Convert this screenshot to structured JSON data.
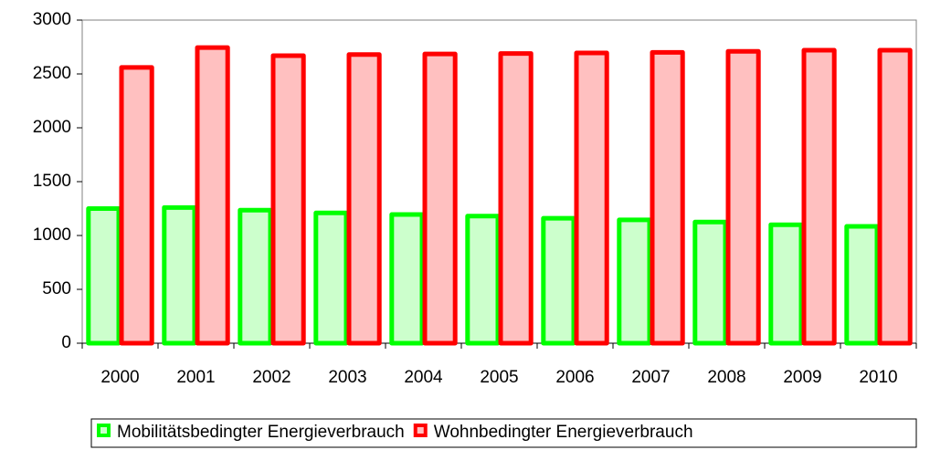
{
  "chart_data": {
    "type": "bar",
    "categories": [
      "2000",
      "2001",
      "2002",
      "2003",
      "2004",
      "2005",
      "2006",
      "2007",
      "2008",
      "2009",
      "2010"
    ],
    "series": [
      {
        "name": "Mobilitätsbedingter Energieverbrauch",
        "color": "#00ff00",
        "fill": "#ccffcc",
        "values": [
          1250,
          1260,
          1235,
          1210,
          1195,
          1180,
          1160,
          1145,
          1125,
          1100,
          1085
        ]
      },
      {
        "name": "Wohnbedingter Energieverbrauch",
        "color": "#ff0000",
        "fill": "#ffc0c0",
        "values": [
          2560,
          2745,
          2670,
          2680,
          2685,
          2690,
          2695,
          2700,
          2710,
          2720,
          2720
        ]
      }
    ],
    "ylim": [
      0,
      3000
    ],
    "yticks": [
      0,
      500,
      1000,
      1500,
      2000,
      2500,
      3000
    ],
    "grid": false,
    "legend": "bottom"
  }
}
